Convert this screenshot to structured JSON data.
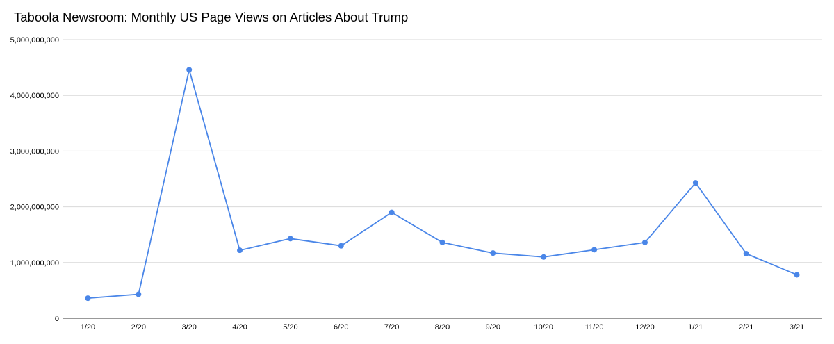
{
  "chart_data": {
    "type": "line",
    "title": "Taboola Newsroom: Monthly US Page Views on Articles About Trump",
    "xlabel": "",
    "ylabel": "",
    "categories": [
      "1/20",
      "2/20",
      "3/20",
      "4/20",
      "5/20",
      "6/20",
      "7/20",
      "8/20",
      "9/20",
      "10/20",
      "11/20",
      "12/20",
      "1/21",
      "2/21",
      "3/21"
    ],
    "series": [
      {
        "values": [
          360000000,
          430000000,
          4460000000,
          1220000000,
          1430000000,
          1300000000,
          1900000000,
          1360000000,
          1170000000,
          1100000000,
          1230000000,
          1360000000,
          2430000000,
          1160000000,
          780000000
        ],
        "color": "#4a86e8"
      }
    ],
    "ylim": [
      0,
      5000000000
    ],
    "yticks": [
      0,
      1000000000,
      2000000000,
      3000000000,
      4000000000,
      5000000000
    ],
    "ytick_labels": [
      "0",
      "1,000,000,000",
      "2,000,000,000",
      "3,000,000,000",
      "4,000,000,000",
      "5,000,000,000"
    ],
    "grid": true,
    "legend": "none"
  }
}
